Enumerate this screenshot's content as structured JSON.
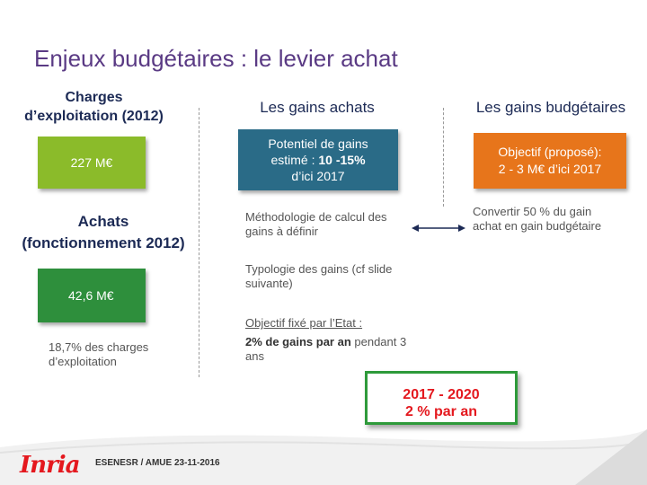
{
  "title": "Enjeux budgétaires : le levier achat",
  "left": {
    "heading_line1": "Charges",
    "heading_line2": "d’exploitation (2012)",
    "box1_value": "227 M€",
    "achats_line1": "Achats",
    "achats_line2": "(fonctionnement 2012)",
    "box2_value": "42,6 M€",
    "note_line1": "18,7% des charges",
    "note_line2": "d’exploitation"
  },
  "middle": {
    "heading": "Les gains achats",
    "potentiel_line1": "Potentiel de gains",
    "potentiel_line2_prefix": "estimé : ",
    "potentiel_line2_bold": "10 -15%",
    "potentiel_line3": "d’ici 2017",
    "methodo_line1": "Méthodologie de calcul des",
    "methodo_line2": "gains à définir",
    "typologie_line1": "Typologie des gains (cf slide",
    "typologie_line2": "suivante)",
    "objectif_label": "Objectif fixé par l’Etat :",
    "objectif_bold": "2% de gains par an",
    "objectif_rest1": " pendant 3",
    "objectif_rest2": "ans",
    "highlight_line1": "2017 - 2020",
    "highlight_line2": "2 % par an"
  },
  "right": {
    "heading": "Les gains budgétaires",
    "objectif_line1": "Objectif (proposé):",
    "objectif_line2": "2 - 3 M€ d’ici 2017",
    "convertir_line1": "Convertir 50 % du gain",
    "convertir_line2": "achat en gain budgétaire"
  },
  "footer": {
    "logo_text": "Inria",
    "text": "ESENESR / AMUE 23-11-2016"
  },
  "colors": {
    "title": "#5a3a84",
    "green_light": "#8bbb2a",
    "green_dark": "#2e8f3c",
    "teal": "#2a6b87",
    "orange": "#e7751b",
    "accent_red": "#e4181e"
  }
}
